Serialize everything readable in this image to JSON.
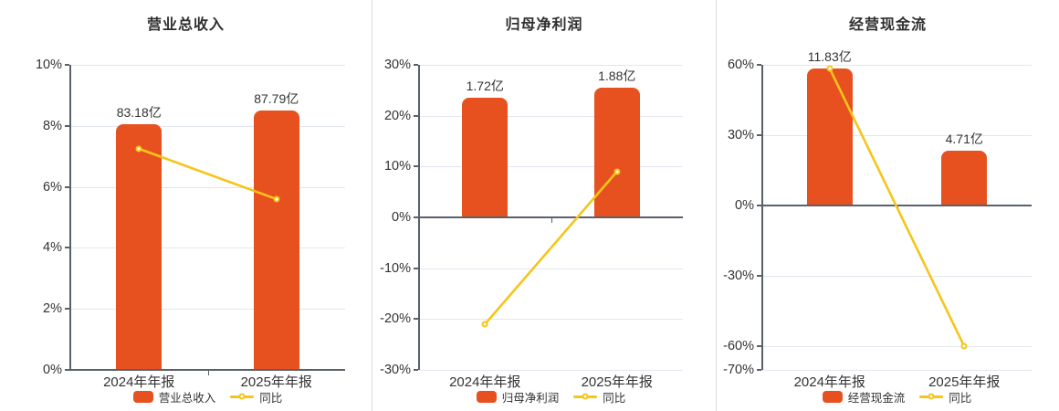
{
  "colors": {
    "bar": "#e6511f",
    "line": "#f6c51a",
    "marker_fill": "#ffffff",
    "grid": "#e2e6f0",
    "axis": "#5a616b",
    "text": "#333333",
    "divider": "#d9d9d9",
    "background": "#ffffff"
  },
  "chart_data": [
    {
      "type": "bar",
      "title": "营业总收入",
      "categories": [
        "2024年年报",
        "2025年年报"
      ],
      "bar_series": {
        "name": "营业总收入",
        "value_labels": [
          "83.18亿",
          "87.79亿"
        ],
        "values_yi": [
          83.18,
          87.79
        ],
        "heights_on_pct_axis": [
          8.05,
          8.5
        ]
      },
      "line_series": {
        "name": "同比",
        "values_pct": [
          7.25,
          5.6
        ]
      },
      "y_axis": {
        "tick_labels": [
          "10%",
          "8%",
          "6%",
          "4%",
          "2%",
          "0%"
        ],
        "tick_values": [
          10,
          8,
          6,
          4,
          2,
          0
        ],
        "max": 10,
        "min": 0
      },
      "legend": [
        "营业总收入",
        "同比"
      ],
      "grid_on": true,
      "legend_position": "bottom"
    },
    {
      "type": "bar",
      "title": "归母净利润",
      "categories": [
        "2024年年报",
        "2025年年报"
      ],
      "bar_series": {
        "name": "归母净利润",
        "value_labels": [
          "1.72亿",
          "1.88亿"
        ],
        "values_yi": [
          1.72,
          1.88
        ],
        "heights_on_pct_axis": [
          23.5,
          25.5
        ]
      },
      "line_series": {
        "name": "同比",
        "values_pct": [
          -21,
          9
        ]
      },
      "y_axis": {
        "tick_labels": [
          "30%",
          "20%",
          "10%",
          "0%",
          "-10%",
          "-20%",
          "-30%"
        ],
        "tick_values": [
          30,
          20,
          10,
          0,
          -10,
          -20,
          -30
        ],
        "max": 30,
        "min": -30
      },
      "legend": [
        "归母净利润",
        "同比"
      ],
      "grid_on": true,
      "legend_position": "bottom"
    },
    {
      "type": "bar",
      "title": "经营现金流",
      "categories": [
        "2024年年报",
        "2025年年报"
      ],
      "bar_series": {
        "name": "经营现金流",
        "value_labels": [
          "11.83亿",
          "4.71亿"
        ],
        "values_yi": [
          11.83,
          4.71
        ],
        "heights_on_pct_axis": [
          58.5,
          23.5
        ]
      },
      "line_series": {
        "name": "同比",
        "values_pct": [
          58.5,
          -60
        ]
      },
      "y_axis": {
        "tick_labels": [
          "60%",
          "30%",
          "0%",
          "-30%",
          "-60%",
          "-70%"
        ],
        "tick_values": [
          60,
          30,
          0,
          -30,
          -60,
          -70
        ],
        "max": 60,
        "min": -70
      },
      "legend": [
        "经营现金流",
        "同比"
      ],
      "grid_on": true,
      "legend_position": "bottom"
    }
  ]
}
